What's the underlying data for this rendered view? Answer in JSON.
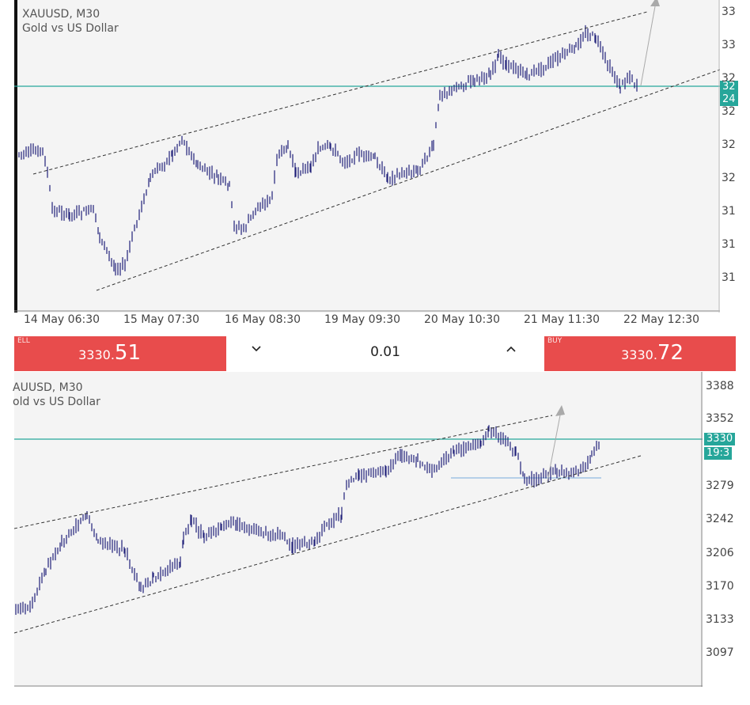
{
  "chart_data": [
    {
      "type": "candlestick",
      "symbol": "XAUUSD, M30",
      "description": "Gold vs US Dollar",
      "x_tick_labels": [
        "14 May 06:30",
        "15 May 07:30",
        "16 May 08:30",
        "19 May 09:30",
        "20 May 10:30",
        "21 May 11:30",
        "22 May 12:30"
      ],
      "y_tick_labels": [
        "33",
        "33",
        "32",
        "32",
        "32",
        "32",
        "31",
        "31",
        "31"
      ],
      "price_tag": [
        "32",
        "24"
      ],
      "line_color": "#1e1e78",
      "current_line_color": "#26a69a",
      "trend_channel": "dashed ascending channel",
      "projection": "upward arrow"
    },
    {
      "type": "candlestick",
      "symbol": "AUUSD, M30",
      "description": "old vs US Dollar",
      "y_tick_labels": [
        "3388",
        "3352",
        "3279",
        "3242",
        "3206",
        "3170",
        "3133",
        "3097"
      ],
      "price_tag": [
        "3330",
        "19:3"
      ],
      "support_line_color": "#8fb9e0",
      "trend_channel": "dashed ascending channel",
      "projection": "upward arrow"
    }
  ],
  "trade_panel": {
    "sell_tag": "ELL",
    "sell_price_main": "3330.",
    "sell_price_big": "51",
    "buy_tag": "BUY",
    "buy_price_main": "3330.",
    "buy_price_big": "72",
    "volume": "0.01",
    "decrease_icon": "chevron-down-icon",
    "increase_icon": "chevron-up-icon",
    "button_color": "#e84c4c"
  }
}
